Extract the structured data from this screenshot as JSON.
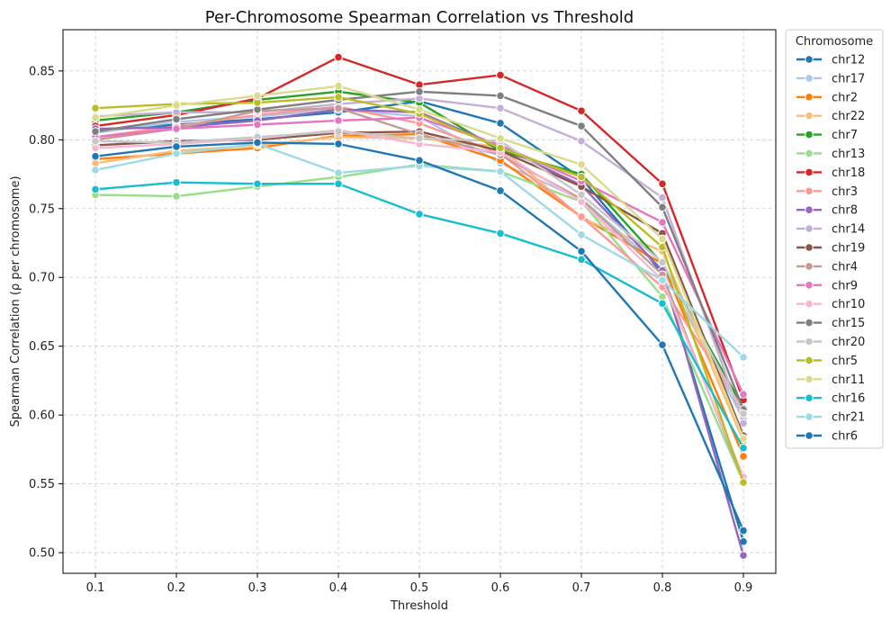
{
  "chart_data": {
    "type": "line",
    "title": "Per-Chromosome Spearman Correlation vs Threshold",
    "xlabel": "Threshold",
    "ylabel": "Spearman Correlation (ρ per chromosome)",
    "x": [
      0.1,
      0.2,
      0.3,
      0.4,
      0.5,
      0.6,
      0.7,
      0.8,
      0.9
    ],
    "x_tick_labels": [
      "0.1",
      "0.2",
      "0.3",
      "0.4",
      "0.5",
      "0.6",
      "0.7",
      "0.8",
      "0.9"
    ],
    "xlim": [
      0.06,
      0.94
    ],
    "ylim": [
      0.485,
      0.88
    ],
    "y_ticks": [
      0.5,
      0.55,
      0.6,
      0.65,
      0.7,
      0.75,
      0.8,
      0.85
    ],
    "y_tick_labels": [
      "0.50",
      "0.55",
      "0.60",
      "0.65",
      "0.70",
      "0.75",
      "0.80",
      "0.85"
    ],
    "grid": true,
    "legend_title": "Chromosome",
    "legend_position": "outside-right",
    "series": [
      {
        "name": "chr12",
        "color": "#1f77b4",
        "values": [
          0.807,
          0.811,
          0.815,
          0.82,
          0.828,
          0.812,
          0.772,
          0.703,
          0.508
        ]
      },
      {
        "name": "chr17",
        "color": "#aec7e8",
        "values": [
          0.805,
          0.813,
          0.817,
          0.822,
          0.817,
          0.783,
          0.757,
          0.706,
          0.597
        ]
      },
      {
        "name": "chr2",
        "color": "#ff7f0e",
        "values": [
          0.786,
          0.79,
          0.794,
          0.803,
          0.804,
          0.785,
          0.744,
          0.71,
          0.57
        ]
      },
      {
        "name": "chr22",
        "color": "#ffbb78",
        "values": [
          0.783,
          0.792,
          0.796,
          0.802,
          0.801,
          0.795,
          0.743,
          0.719,
          0.581
        ]
      },
      {
        "name": "chr7",
        "color": "#2ca02c",
        "values": [
          0.814,
          0.82,
          0.829,
          0.835,
          0.827,
          0.792,
          0.775,
          0.71,
          0.605
        ]
      },
      {
        "name": "chr13",
        "color": "#98df8a",
        "values": [
          0.76,
          0.759,
          0.766,
          0.773,
          0.782,
          0.777,
          0.755,
          0.686,
          0.551
        ]
      },
      {
        "name": "chr18",
        "color": "#d62728",
        "values": [
          0.81,
          0.818,
          0.83,
          0.86,
          0.84,
          0.847,
          0.821,
          0.768,
          0.611
        ]
      },
      {
        "name": "chr3",
        "color": "#ff9896",
        "values": [
          0.802,
          0.81,
          0.818,
          0.824,
          0.812,
          0.79,
          0.744,
          0.693,
          0.604
        ]
      },
      {
        "name": "chr8",
        "color": "#9467bd",
        "values": [
          0.808,
          0.809,
          0.814,
          0.822,
          0.82,
          0.795,
          0.767,
          0.705,
          0.498
        ]
      },
      {
        "name": "chr14",
        "color": "#c5b0d5",
        "values": [
          0.817,
          0.82,
          0.82,
          0.826,
          0.83,
          0.823,
          0.799,
          0.758,
          0.594
        ]
      },
      {
        "name": "chr19",
        "color": "#8c564b",
        "values": [
          0.796,
          0.799,
          0.8,
          0.805,
          0.806,
          0.792,
          0.766,
          0.732,
          0.585
        ]
      },
      {
        "name": "chr4",
        "color": "#c49c94",
        "values": [
          0.8,
          0.808,
          0.821,
          0.823,
          0.804,
          0.789,
          0.757,
          0.702,
          0.552
        ]
      },
      {
        "name": "chr9",
        "color": "#e377c2",
        "values": [
          0.802,
          0.808,
          0.811,
          0.814,
          0.816,
          0.796,
          0.77,
          0.74,
          0.615
        ]
      },
      {
        "name": "chr10",
        "color": "#f7b6d2",
        "values": [
          0.794,
          0.797,
          0.801,
          0.807,
          0.797,
          0.791,
          0.755,
          0.698,
          0.555
        ]
      },
      {
        "name": "chr15",
        "color": "#7f7f7f",
        "values": [
          0.806,
          0.815,
          0.822,
          0.829,
          0.835,
          0.832,
          0.81,
          0.751,
          0.604
        ]
      },
      {
        "name": "chr20",
        "color": "#c7c7c7",
        "values": [
          0.799,
          0.798,
          0.802,
          0.806,
          0.801,
          0.799,
          0.76,
          0.711,
          0.601
        ]
      },
      {
        "name": "chr5",
        "color": "#bcbd22",
        "values": [
          0.823,
          0.826,
          0.827,
          0.831,
          0.819,
          0.794,
          0.773,
          0.722,
          0.551
        ]
      },
      {
        "name": "chr11",
        "color": "#dbdb8d",
        "values": [
          0.816,
          0.825,
          0.832,
          0.839,
          0.822,
          0.801,
          0.782,
          0.728,
          0.583
        ]
      },
      {
        "name": "chr16",
        "color": "#17becf",
        "values": [
          0.764,
          0.769,
          0.768,
          0.768,
          0.746,
          0.732,
          0.713,
          0.681,
          0.576
        ]
      },
      {
        "name": "chr21",
        "color": "#9edae5",
        "values": [
          0.778,
          0.79,
          0.797,
          0.776,
          0.781,
          0.777,
          0.731,
          0.698,
          0.642
        ]
      },
      {
        "name": "chr6",
        "color": "#1f77b4",
        "values": [
          0.788,
          0.795,
          0.798,
          0.797,
          0.785,
          0.763,
          0.719,
          0.651,
          0.516
        ]
      }
    ]
  }
}
